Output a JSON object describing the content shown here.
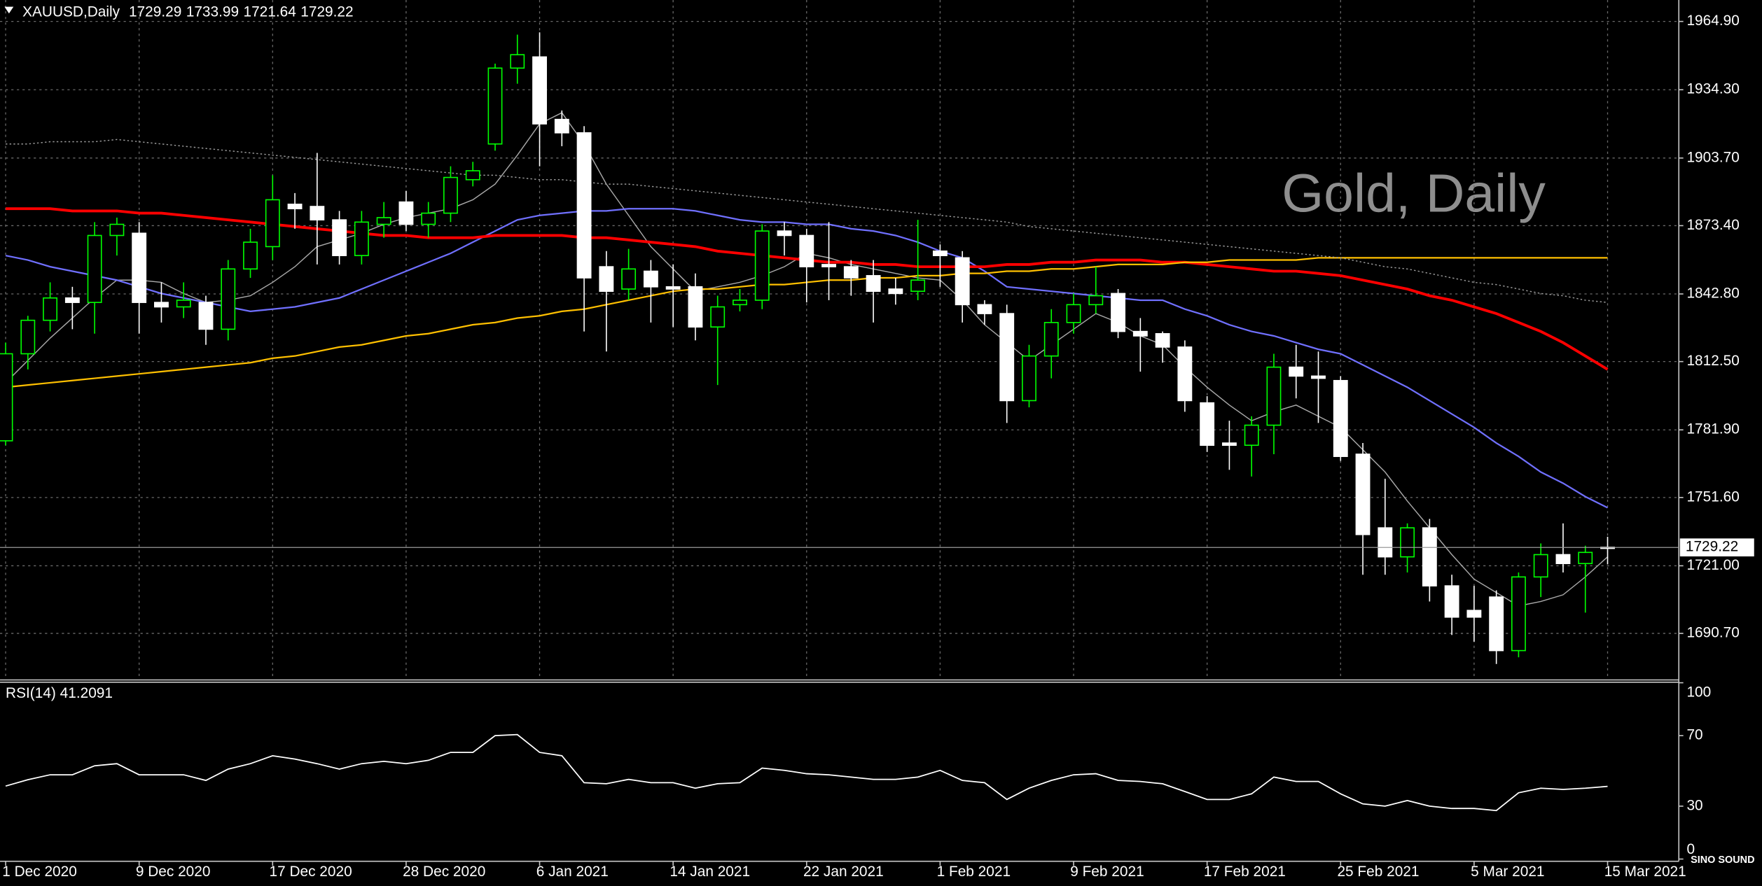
{
  "chart_data": {
    "type": "candlestick",
    "title": "XAUUSD,Daily",
    "watermark": "Gold, Daily",
    "logo": "SINO SOUND",
    "categories": [
      "1 Dec 2020",
      null,
      null,
      null,
      null,
      null,
      "9 Dec 2020",
      null,
      null,
      null,
      null,
      null,
      "17 Dec 2020",
      null,
      null,
      null,
      null,
      null,
      "28 Dec 2020",
      null,
      null,
      null,
      null,
      null,
      "6 Jan 2021",
      null,
      null,
      null,
      null,
      null,
      "14 Jan 2021",
      null,
      null,
      null,
      null,
      null,
      "22 Jan 2021",
      null,
      null,
      null,
      null,
      null,
      "1 Feb 2021",
      null,
      null,
      null,
      null,
      null,
      "9 Feb 2021",
      null,
      null,
      null,
      null,
      null,
      "17 Feb 2021",
      null,
      null,
      null,
      null,
      null,
      "25 Feb 2021",
      null,
      null,
      null,
      null,
      null,
      "5 Mar 2021",
      null,
      null,
      null,
      null,
      null,
      "15 Mar 2021"
    ],
    "open": [
      1777,
      1816,
      1831,
      1841,
      1839,
      1869,
      1870,
      1839,
      1837,
      1839,
      1827,
      1854,
      1864,
      1883,
      1882,
      1876,
      1860,
      1874,
      1884,
      1874,
      1879,
      1894,
      1910,
      1944,
      1949,
      1921,
      1915,
      1855,
      1845,
      1853,
      1846,
      1846,
      1828,
      1838,
      1840,
      1871,
      1869,
      1856,
      1855,
      1851,
      1845,
      1844,
      1862,
      1859,
      1838,
      1834,
      1795,
      1815,
      1830,
      1838,
      1843,
      1826,
      1825,
      1819,
      1794,
      1776,
      1775,
      1784,
      1810,
      1806,
      1804,
      1771,
      1738,
      1725,
      1738,
      1712,
      1701,
      1707,
      1683,
      1716,
      1726,
      1722,
      1729.29
    ],
    "high": [
      1821,
      1833,
      1848,
      1846,
      1875,
      1877,
      1875,
      1848,
      1848,
      1842,
      1858,
      1872,
      1896,
      1888,
      1906,
      1880,
      1880,
      1884,
      1889,
      1884,
      1900,
      1902,
      1946,
      1959,
      1960,
      1925,
      1918,
      1862,
      1863,
      1858,
      1856,
      1852,
      1842,
      1845,
      1874,
      1875,
      1872,
      1875,
      1858,
      1858,
      1850,
      1876,
      1865,
      1862,
      1840,
      1838,
      1820,
      1836,
      1843,
      1855,
      1845,
      1832,
      1826,
      1822,
      1797,
      1786,
      1788,
      1816,
      1820,
      1817,
      1806,
      1776,
      1760,
      1740,
      1742,
      1717,
      1712,
      1710,
      1718,
      1731,
      1740,
      1730,
      1733.99
    ],
    "low": [
      1775,
      1809,
      1826,
      1827,
      1825,
      1860,
      1825,
      1830,
      1832,
      1820,
      1822,
      1850,
      1858,
      1872,
      1856,
      1856,
      1856,
      1868,
      1871,
      1868,
      1875,
      1891,
      1907,
      1937,
      1900,
      1909,
      1826,
      1817,
      1840,
      1830,
      1828,
      1822,
      1802,
      1835,
      1836,
      1860,
      1839,
      1840,
      1842,
      1830,
      1838,
      1840,
      1846,
      1830,
      1829,
      1785,
      1792,
      1805,
      1825,
      1834,
      1823,
      1808,
      1812,
      1790,
      1772,
      1764,
      1761,
      1771,
      1796,
      1785,
      1768,
      1717,
      1717,
      1718,
      1705,
      1690,
      1687,
      1677,
      1680,
      1707,
      1718,
      1700,
      1721.64
    ],
    "close": [
      1816,
      1831,
      1841,
      1839,
      1869,
      1874,
      1839,
      1837,
      1840,
      1827,
      1854,
      1866,
      1885,
      1881,
      1876,
      1860,
      1875,
      1877,
      1874,
      1879,
      1895,
      1898,
      1944,
      1950,
      1919,
      1915,
      1850,
      1844,
      1854,
      1846,
      1845,
      1828,
      1837,
      1840,
      1871,
      1869,
      1855,
      1855,
      1850,
      1844,
      1843,
      1849,
      1860,
      1838,
      1834,
      1795,
      1815,
      1830,
      1838,
      1842,
      1826,
      1824,
      1819,
      1795,
      1775,
      1775,
      1784,
      1810,
      1806,
      1805,
      1770,
      1735,
      1725,
      1738,
      1712,
      1698,
      1698,
      1683,
      1716,
      1726,
      1722,
      1727,
      1729.22
    ],
    "up_color": "#00ff00",
    "down_color": "#ffffff",
    "overlays": [
      {
        "color": "#a8a8a8",
        "line_style": "thin",
        "values": [
          1803,
          1813,
          1823,
          1832,
          1841,
          1849,
          1849,
          1848,
          1843,
          1839,
          1840,
          1842,
          1848,
          1855,
          1864,
          1867,
          1870,
          1874,
          1877,
          1879,
          1881,
          1885,
          1892,
          1905,
          1919,
          1924,
          1910,
          1892,
          1878,
          1864,
          1854,
          1844,
          1846,
          1848,
          1851,
          1855,
          1861,
          1859,
          1856,
          1854,
          1852,
          1850,
          1849,
          1840,
          1829,
          1821,
          1813,
          1820,
          1827,
          1834,
          1830,
          1824,
          1820,
          1810,
          1801,
          1793,
          1786,
          1790,
          1793,
          1788,
          1783,
          1773,
          1763,
          1750,
          1738,
          1726,
          1715,
          1709,
          1703,
          1705,
          1708,
          1716,
          1725
        ]
      },
      {
        "color": "#7070ff",
        "line_style": "medium",
        "values": [
          1860,
          1858,
          1855,
          1853,
          1851,
          1849,
          1846,
          1843,
          1841,
          1839,
          1837,
          1835,
          1836,
          1837,
          1839,
          1841,
          1845,
          1849,
          1853,
          1857,
          1861,
          1866,
          1871,
          1876,
          1878,
          1879,
          1880,
          1880,
          1881,
          1881,
          1881,
          1880,
          1878,
          1876,
          1875,
          1875,
          1874,
          1874,
          1872,
          1871,
          1869,
          1866,
          1862,
          1859,
          1853,
          1846,
          1845,
          1844,
          1843,
          1842,
          1841,
          1840,
          1840,
          1836,
          1833,
          1829,
          1826,
          1824,
          1821,
          1818,
          1816,
          1811,
          1806,
          1801,
          1795,
          1789,
          1783,
          1776,
          1770,
          1763,
          1758,
          1752,
          1747
        ]
      },
      {
        "color": "#ff0000",
        "line_style": "thick",
        "values": [
          1881,
          1881,
          1881,
          1880,
          1880,
          1880,
          1879,
          1879,
          1878,
          1877,
          1876,
          1875,
          1874,
          1873,
          1872,
          1871,
          1870,
          1869,
          1869,
          1868,
          1868,
          1868,
          1869,
          1869,
          1869,
          1869,
          1868,
          1868,
          1867,
          1866,
          1865,
          1864,
          1862,
          1861,
          1860,
          1859,
          1858,
          1857,
          1857,
          1856,
          1856,
          1855,
          1855,
          1855,
          1855,
          1856,
          1856,
          1857,
          1857,
          1858,
          1858,
          1858,
          1857,
          1857,
          1856,
          1855,
          1854,
          1853,
          1853,
          1852,
          1851,
          1849,
          1847,
          1845,
          1842,
          1840,
          1837,
          1834,
          1830,
          1826,
          1821,
          1815,
          1809
        ]
      },
      {
        "color": "#ffc000",
        "line_style": "medium",
        "values": [
          1801,
          1802,
          1803,
          1804,
          1805,
          1806,
          1807,
          1808,
          1809,
          1810,
          1811,
          1812,
          1814,
          1815,
          1817,
          1819,
          1820,
          1822,
          1824,
          1825,
          1827,
          1829,
          1830,
          1832,
          1833,
          1835,
          1836,
          1838,
          1840,
          1842,
          1844,
          1845,
          1845,
          1846,
          1847,
          1847,
          1848,
          1849,
          1849,
          1850,
          1850,
          1851,
          1851,
          1852,
          1852,
          1853,
          1853,
          1854,
          1854,
          1855,
          1856,
          1856,
          1856,
          1857,
          1857,
          1858,
          1858,
          1858,
          1858,
          1859,
          1859,
          1859,
          1859,
          1859,
          1859,
          1859,
          1859,
          1859,
          1859,
          1859,
          1859,
          1859,
          1859
        ]
      },
      {
        "color": "#9a9a9a",
        "line_style": "dotted",
        "values": [
          1910,
          1910,
          1911,
          1911,
          1911,
          1912,
          1911,
          1910,
          1909,
          1908,
          1907,
          1906,
          1905,
          1904,
          1903,
          1902,
          1901,
          1900,
          1899,
          1898,
          1897,
          1896,
          1896,
          1895,
          1894,
          1894,
          1893,
          1892,
          1892,
          1891,
          1890,
          1889,
          1888,
          1887,
          1886,
          1885,
          1884,
          1883,
          1882,
          1881,
          1880,
          1879,
          1878,
          1877,
          1876,
          1875,
          1873,
          1872,
          1871,
          1870,
          1869,
          1868,
          1867,
          1866,
          1865,
          1864,
          1863,
          1862,
          1861,
          1860,
          1859,
          1857,
          1855,
          1854,
          1852,
          1850,
          1848,
          1847,
          1845,
          1843,
          1842,
          1840,
          1839
        ]
      }
    ],
    "ylim": [
      1670.1,
      1973.0
    ],
    "yticks": [
      {
        "value": 1964.9,
        "label": "1964.90"
      },
      {
        "value": 1934.3,
        "label": "1934.30"
      },
      {
        "value": 1903.7,
        "label": "1903.70"
      },
      {
        "value": 1873.4,
        "label": "1873.40"
      },
      {
        "value": 1842.8,
        "label": "1842.80"
      },
      {
        "value": 1812.5,
        "label": "1812.50"
      },
      {
        "value": 1781.9,
        "label": "1781.90"
      },
      {
        "value": 1751.6,
        "label": "1751.60"
      },
      {
        "value": 1721.0,
        "label": "1721.00"
      },
      {
        "value": 1690.7,
        "label": "1690.70"
      }
    ],
    "grid": true,
    "indicator": {
      "label": "RSI(14) 41.2091",
      "color": "#ffffff",
      "values": [
        41.4,
        45,
        47.8,
        47.8,
        52.9,
        54.1,
        47.8,
        47.8,
        47.8,
        44.6,
        51.0,
        54.1,
        58.6,
        56.7,
        54.1,
        51.0,
        54.1,
        55.4,
        54.1,
        56.0,
        60.5,
        60.5,
        70.0,
        70.6,
        60.5,
        58.6,
        43.3,
        42.7,
        45.2,
        43.3,
        43.3,
        40.2,
        42.7,
        43.3,
        51.6,
        50.3,
        48.4,
        47.8,
        46.5,
        45.2,
        45.2,
        46.5,
        50.3,
        44.6,
        43.3,
        33.8,
        40.2,
        44.6,
        47.8,
        48.4,
        44.6,
        44.0,
        42.7,
        38.3,
        33.8,
        33.8,
        37.0,
        46.5,
        44.0,
        44.0,
        37.0,
        31.3,
        30.0,
        33.2,
        30.0,
        28.7,
        28.7,
        27.5,
        37.6,
        40.2,
        39.5,
        40.2,
        41.2091
      ],
      "ylim": [
        0,
        100
      ],
      "yticks": [
        100,
        70,
        30,
        0
      ]
    }
  }
}
